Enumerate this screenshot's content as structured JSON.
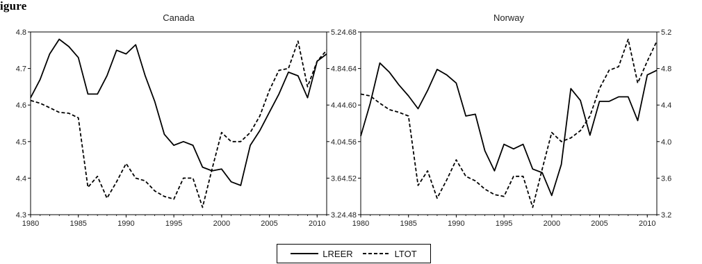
{
  "figure": {
    "heading": "igure"
  },
  "chart_data": [
    {
      "type": "line",
      "title": "Canada",
      "xlabel": "",
      "ylabel_left": "",
      "ylabel_right": "",
      "xlim": [
        1980,
        2011
      ],
      "ylim_left": [
        4.3,
        4.8
      ],
      "ylim_right": [
        3.2,
        5.2
      ],
      "x_ticks": [
        "1980",
        "1985",
        "1990",
        "1995",
        "2000",
        "2005",
        "2010"
      ],
      "y_ticks_left": [
        "4.3",
        "4.4",
        "4.5",
        "4.6",
        "4.7",
        "4.8"
      ],
      "y_ticks_right": [
        "3.2",
        "3.6",
        "4.0",
        "4.4",
        "4.8",
        "5.2"
      ],
      "grid": false,
      "x": [
        1980,
        1981,
        1982,
        1983,
        1984,
        1985,
        1986,
        1987,
        1988,
        1989,
        1990,
        1991,
        1992,
        1993,
        1994,
        1995,
        1996,
        1997,
        1998,
        1999,
        2000,
        2001,
        2002,
        2003,
        2004,
        2005,
        2006,
        2007,
        2008,
        2009,
        2010,
        2011
      ],
      "series": [
        {
          "name": "LREER",
          "axis": "left",
          "style": "solid",
          "values": [
            4.62,
            4.67,
            4.74,
            4.78,
            4.76,
            4.73,
            4.63,
            4.63,
            4.68,
            4.75,
            4.74,
            4.765,
            4.68,
            4.61,
            4.52,
            4.49,
            4.5,
            4.49,
            4.43,
            4.42,
            4.425,
            4.39,
            4.38,
            4.49,
            4.53,
            4.58,
            4.63,
            4.69,
            4.68,
            4.62,
            4.72,
            4.74
          ]
        },
        {
          "name": "LTOT",
          "axis": "right",
          "style": "dashed",
          "values": [
            4.45,
            4.42,
            4.37,
            4.32,
            4.31,
            4.26,
            3.5,
            3.62,
            3.38,
            3.56,
            3.76,
            3.6,
            3.57,
            3.46,
            3.4,
            3.37,
            3.6,
            3.6,
            3.28,
            3.7,
            4.1,
            4.0,
            4.0,
            4.1,
            4.28,
            4.56,
            4.78,
            4.8,
            5.1,
            4.6,
            4.88,
            5.0
          ]
        }
      ]
    },
    {
      "type": "line",
      "title": "Norway",
      "xlabel": "",
      "ylabel_left": "",
      "ylabel_right": "",
      "xlim": [
        1980,
        2011
      ],
      "ylim_left": [
        4.48,
        4.68
      ],
      "ylim_right": [
        3.2,
        5.2
      ],
      "x_ticks": [
        "1980",
        "1985",
        "1990",
        "1995",
        "2000",
        "2005",
        "2010"
      ],
      "y_ticks_left": [
        "4.48",
        "4.52",
        "4.56",
        "4.60",
        "4.64",
        "4.68"
      ],
      "y_ticks_right": [
        "3.2",
        "3.6",
        "4.0",
        "4.4",
        "4.8",
        "5.2"
      ],
      "grid": false,
      "x": [
        1980,
        1981,
        1982,
        1983,
        1984,
        1985,
        1986,
        1987,
        1988,
        1989,
        1990,
        1991,
        1992,
        1993,
        1994,
        1995,
        1996,
        1997,
        1998,
        1999,
        2000,
        2001,
        2002,
        2003,
        2004,
        2005,
        2006,
        2007,
        2008,
        2009,
        2010,
        2011
      ],
      "series": [
        {
          "name": "LREER",
          "axis": "left",
          "style": "solid",
          "values": [
            4.566,
            4.602,
            4.646,
            4.636,
            4.622,
            4.61,
            4.596,
            4.616,
            4.639,
            4.633,
            4.624,
            4.588,
            4.59,
            4.55,
            4.528,
            4.557,
            4.552,
            4.557,
            4.53,
            4.526,
            4.501,
            4.535,
            4.618,
            4.605,
            4.567,
            4.604,
            4.604,
            4.609,
            4.609,
            4.583,
            4.633,
            4.638
          ]
        },
        {
          "name": "LTOT",
          "axis": "right",
          "style": "dashed",
          "values": [
            4.52,
            4.5,
            4.42,
            4.35,
            4.32,
            4.28,
            3.52,
            3.68,
            3.38,
            3.58,
            3.8,
            3.62,
            3.57,
            3.48,
            3.42,
            3.4,
            3.62,
            3.62,
            3.28,
            3.7,
            4.1,
            4.0,
            4.04,
            4.12,
            4.28,
            4.58,
            4.78,
            4.82,
            5.12,
            4.64,
            4.88,
            5.1
          ]
        }
      ]
    }
  ],
  "legend": {
    "placement": "bottom-center",
    "items": [
      {
        "label": "LREER",
        "style": "solid"
      },
      {
        "label": "LTOT",
        "style": "dashed"
      }
    ]
  }
}
